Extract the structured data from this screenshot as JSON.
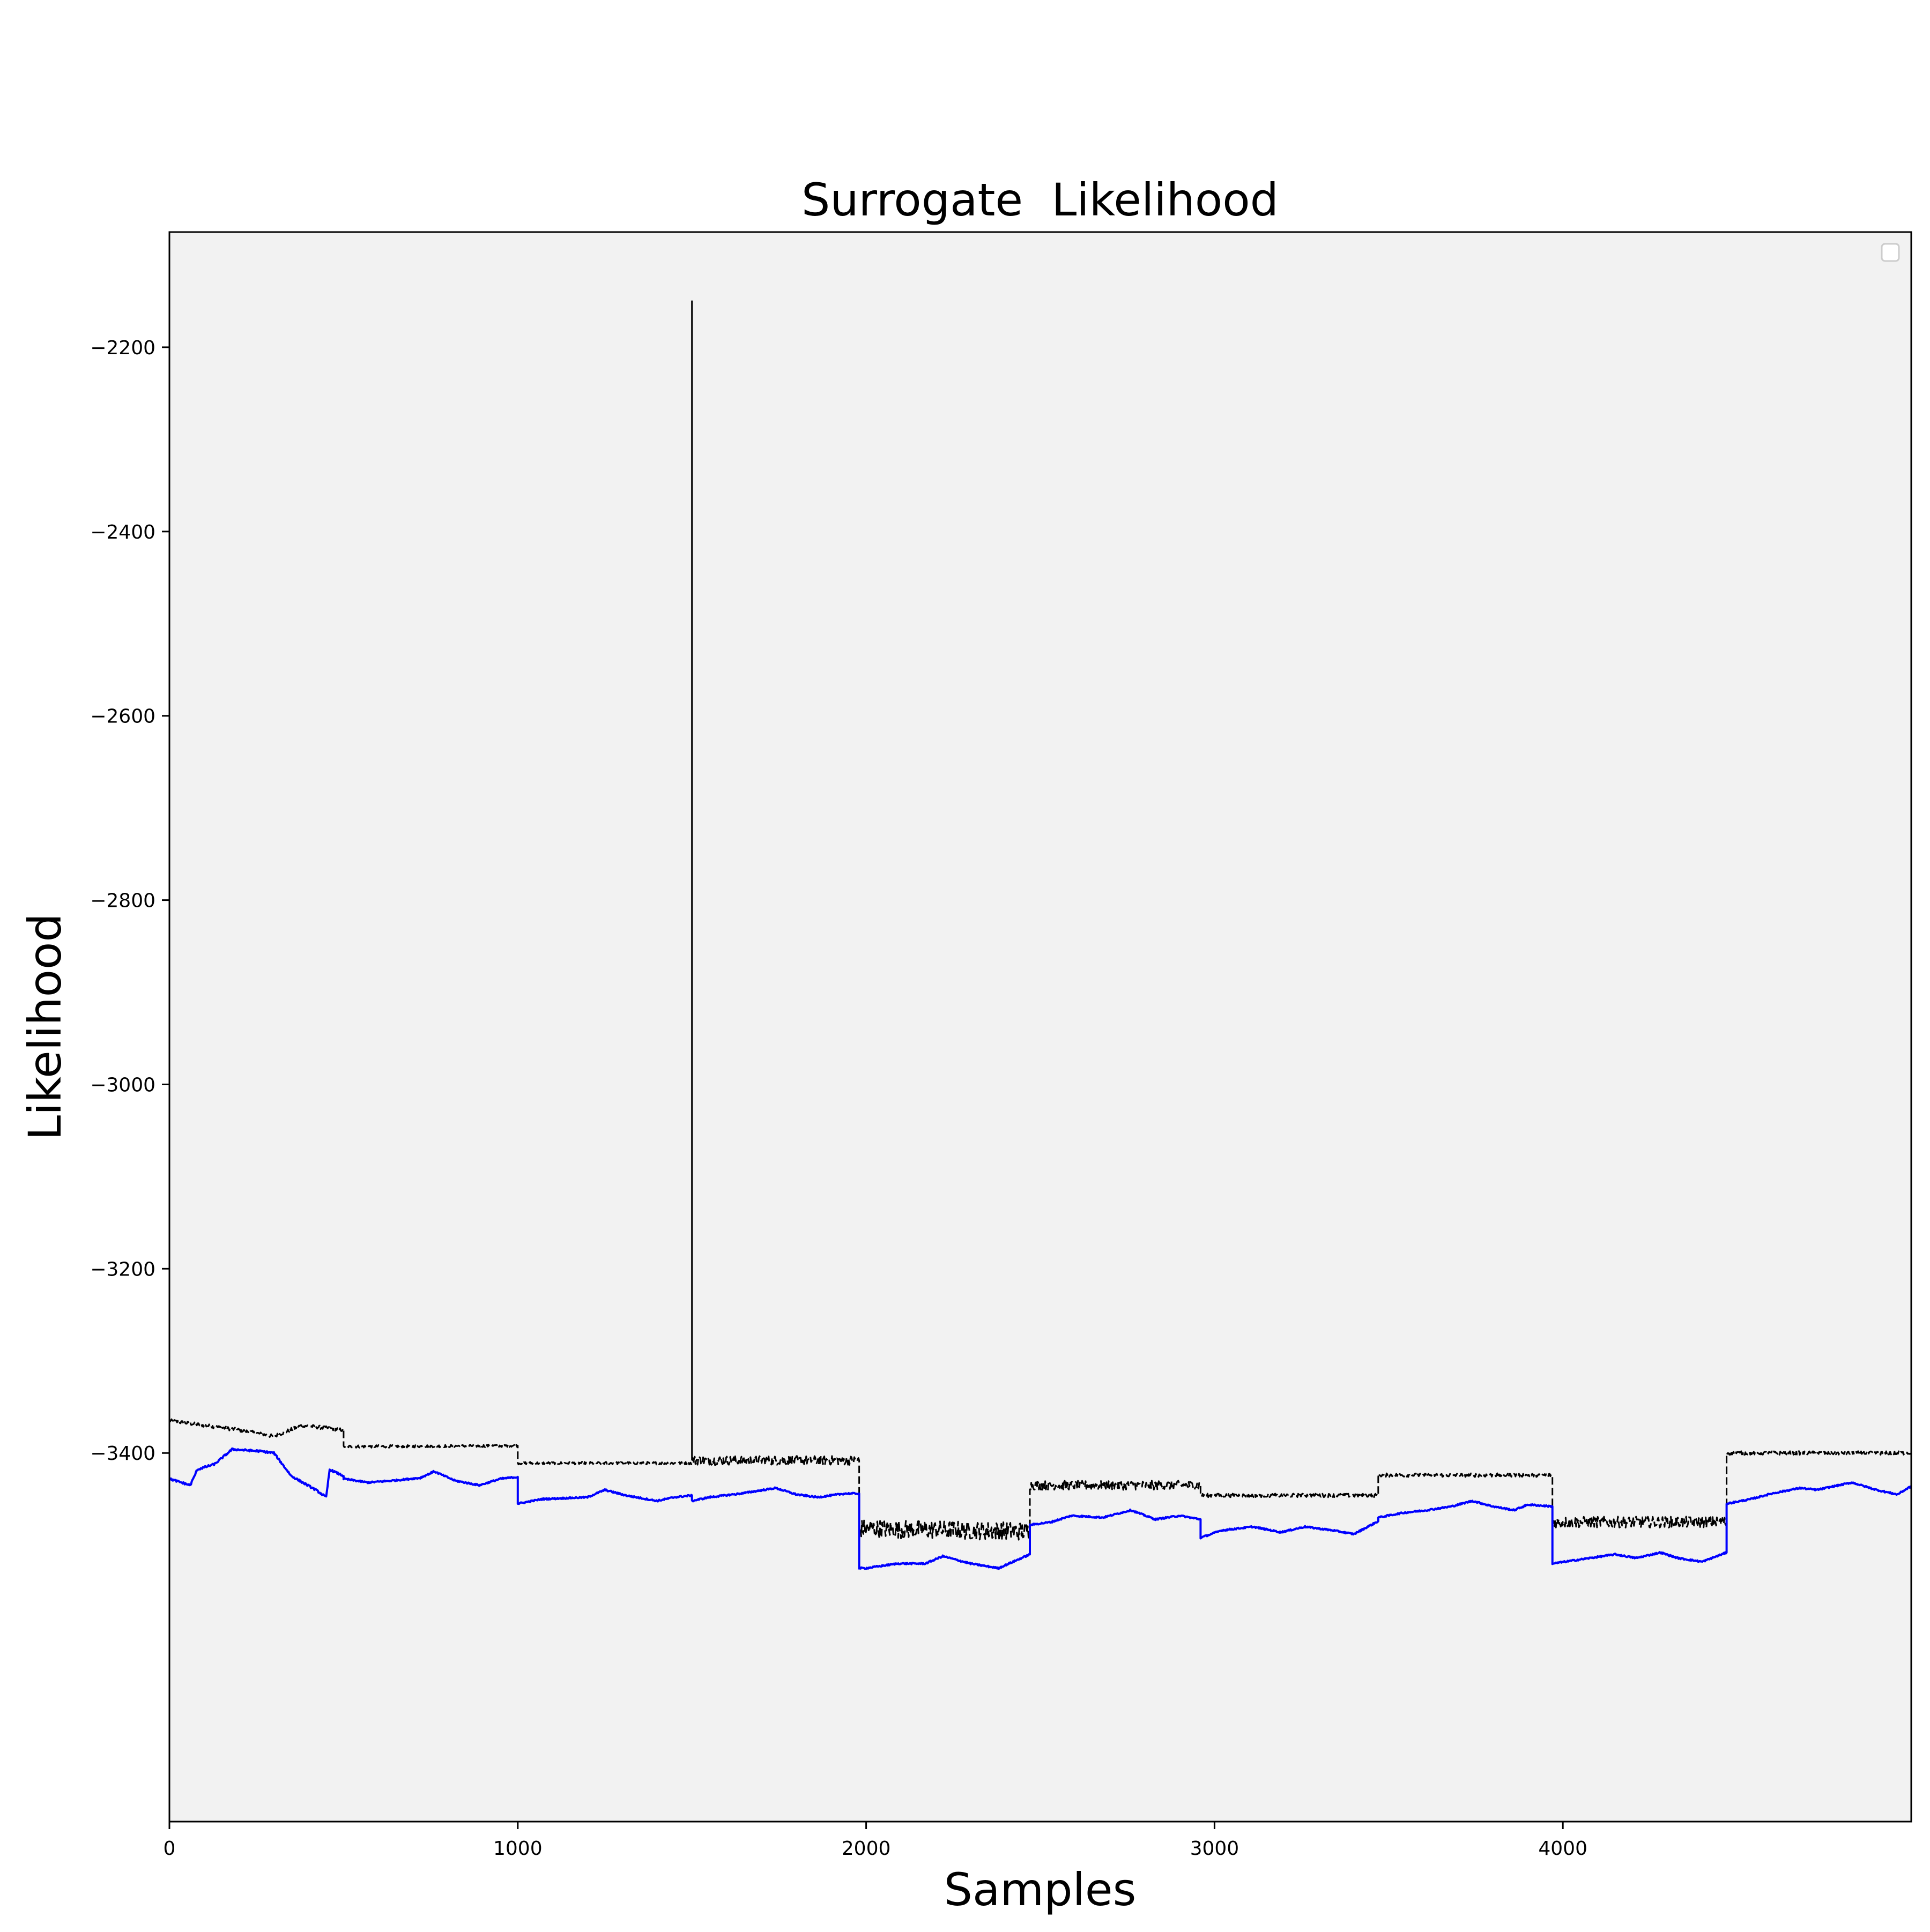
{
  "chart_data": {
    "type": "line",
    "title": "Surrogate  Likelihood",
    "xlabel": "Samples",
    "ylabel": "Likelihood",
    "xlim": [
      0,
      5000
    ],
    "ylim": [
      -3800,
      -2075
    ],
    "xticks": [
      0,
      1000,
      2000,
      3000,
      4000
    ],
    "yticks": [
      -3400,
      -3200,
      -3000,
      -2800,
      -2600,
      -2400,
      -2200
    ],
    "legend": "top-right",
    "legend_entries": [],
    "background_color": "#f2f2f2",
    "series": [
      {
        "color": "#000000",
        "style": "dashed",
        "segments": [
          {
            "x": [
              0,
              100,
              200,
              300,
              380,
              500
            ],
            "y": [
              -3365,
              -3370,
              -3375,
              -3382,
              -3370,
              -3375
            ],
            "noise": 2
          },
          {
            "x": [
              500,
              1000
            ],
            "y": [
              -3393,
              -3392
            ],
            "noise": 1.5
          },
          {
            "x": [
              1000,
              1500
            ],
            "y": [
              -3411,
              -3411
            ],
            "noise": 1.5
          },
          {
            "x": [
              1500,
              1500
            ],
            "y": [
              -3411,
              -2150
            ],
            "noise": 0
          },
          {
            "x": [
              1500,
              1980
            ],
            "y": [
              -3408,
              -3408
            ],
            "noise": 5
          },
          {
            "x": [
              1980,
              2470
            ],
            "y": [
              -3482,
              -3485
            ],
            "noise": 10
          },
          {
            "x": [
              2470,
              2960
            ],
            "y": [
              -3435,
              -3435
            ],
            "noise": 5
          },
          {
            "x": [
              2960,
              3470
            ],
            "y": [
              -3446,
              -3446
            ],
            "noise": 2
          },
          {
            "x": [
              3470,
              3970
            ],
            "y": [
              -3424,
              -3424
            ],
            "noise": 2
          },
          {
            "x": [
              3970,
              4470
            ],
            "y": [
              -3475,
              -3475
            ],
            "noise": 6
          },
          {
            "x": [
              4470,
              5000
            ],
            "y": [
              -3400,
              -3400
            ],
            "noise": 2
          }
        ]
      },
      {
        "color": "#0000ff",
        "style": "solid",
        "segments": [
          {
            "x": [
              0,
              60,
              80,
              130,
              180,
              260,
              300,
              350,
              420,
              450,
              460,
              500
            ],
            "y": [
              -3428,
              -3435,
              -3418,
              -3412,
              -3396,
              -3398,
              -3400,
              -3425,
              -3440,
              -3448,
              -3418,
              -3425
            ],
            "noise": 1
          },
          {
            "x": [
              500,
              570,
              640,
              720,
              760,
              820,
              890,
              950,
              1000
            ],
            "y": [
              -3428,
              -3432,
              -3430,
              -3427,
              -3420,
              -3430,
              -3435,
              -3428,
              -3426
            ],
            "noise": 0.8
          },
          {
            "x": [
              1000,
              1070,
              1200,
              1250,
              1310,
              1400,
              1450,
              1500
            ],
            "y": [
              -3455,
              -3450,
              -3448,
              -3440,
              -3446,
              -3452,
              -3448,
              -3446
            ],
            "noise": 0.8
          },
          {
            "x": [
              1500,
              1550,
              1640,
              1740,
              1800,
              1860,
              1940,
              1980
            ],
            "y": [
              -3452,
              -3448,
              -3444,
              -3438,
              -3445,
              -3448,
              -3444,
              -3444
            ],
            "noise": 0.8
          },
          {
            "x": [
              1980,
              2000,
              2090,
              2170,
              2220,
              2300,
              2380,
              2470
            ],
            "y": [
              -3525,
              -3525,
              -3520,
              -3520,
              -3512,
              -3520,
              -3525,
              -3510
            ],
            "noise": 0.8
          },
          {
            "x": [
              2470,
              2530,
              2590,
              2680,
              2760,
              2830,
              2900,
              2960
            ],
            "y": [
              -3478,
              -3475,
              -3468,
              -3470,
              -3462,
              -3472,
              -3468,
              -3472
            ],
            "noise": 0.8
          },
          {
            "x": [
              2960,
              3020,
              3110,
              3190,
              3260,
              3340,
              3400,
              3470
            ],
            "y": [
              -3492,
              -3484,
              -3480,
              -3486,
              -3480,
              -3484,
              -3488,
              -3474
            ],
            "noise": 0.8
          },
          {
            "x": [
              3470,
              3540,
              3610,
              3680,
              3740,
              3800,
              3860,
              3900,
              3970
            ],
            "y": [
              -3470,
              -3465,
              -3462,
              -3458,
              -3452,
              -3458,
              -3462,
              -3456,
              -3458
            ],
            "noise": 0.8
          },
          {
            "x": [
              3970,
              4060,
              4150,
              4210,
              4280,
              4330,
              4400,
              4470
            ],
            "y": [
              -3520,
              -3515,
              -3510,
              -3514,
              -3508,
              -3514,
              -3518,
              -3508
            ],
            "noise": 0.8
          },
          {
            "x": [
              4470,
              4540,
              4600,
              4680,
              4730,
              4830,
              4900,
              4960,
              5000
            ],
            "y": [
              -3455,
              -3450,
              -3444,
              -3438,
              -3440,
              -3432,
              -3440,
              -3445,
              -3436
            ],
            "noise": 0.8
          }
        ]
      }
    ]
  }
}
